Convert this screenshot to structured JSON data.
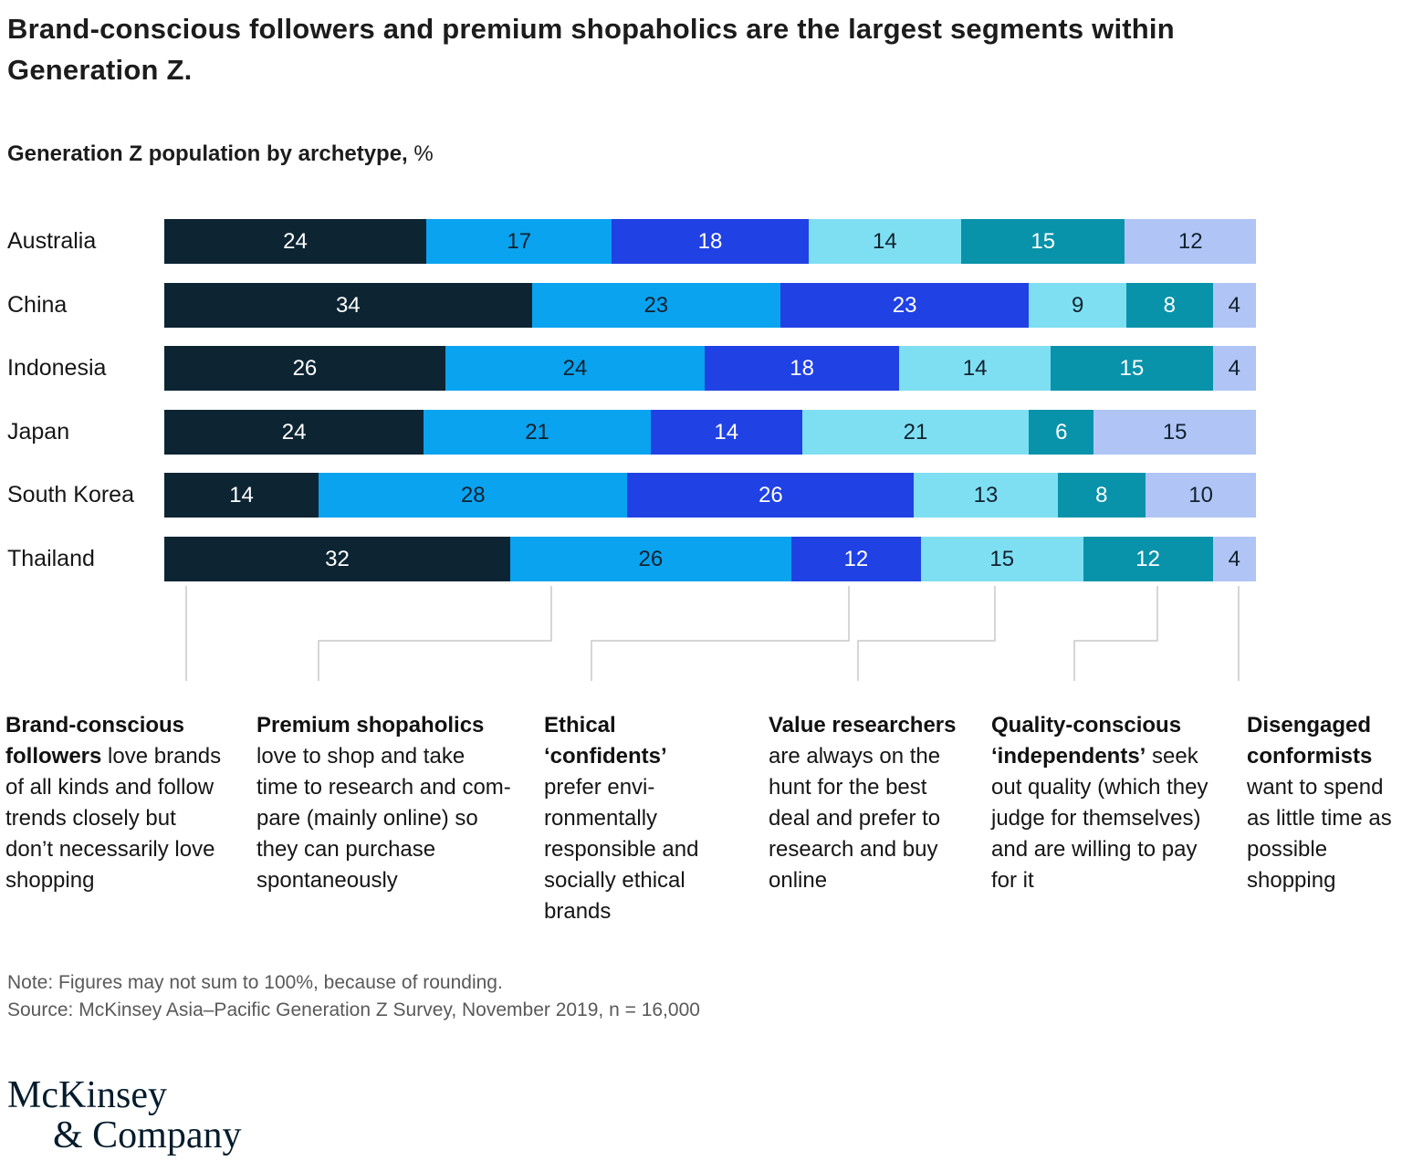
{
  "title": "Brand-conscious followers and premium shopaholics are the largest segments within Generation Z.",
  "subtitle": {
    "label": "Generation Z population by archetype,",
    "unit": "%"
  },
  "chart_data": {
    "type": "bar",
    "stacked": true,
    "orientation": "horizontal",
    "unit": "%",
    "xlim": [
      0,
      100
    ],
    "grid": false,
    "categories": [
      "Australia",
      "China",
      "Indonesia",
      "Japan",
      "South Korea",
      "Thailand"
    ],
    "series": [
      {
        "name": "Brand-conscious followers",
        "color": "#0d2433",
        "text_color": "#ffffff",
        "values": [
          24,
          34,
          26,
          24,
          14,
          32
        ]
      },
      {
        "name": "Premium shopaholics",
        "color": "#0aa3f0",
        "text_color": "#10222e",
        "values": [
          17,
          23,
          24,
          21,
          28,
          26
        ]
      },
      {
        "name": "Ethical ‘confidents’",
        "color": "#2041e4",
        "text_color": "#ffffff",
        "values": [
          18,
          23,
          18,
          14,
          26,
          12
        ]
      },
      {
        "name": "Value researchers",
        "color": "#7fdff2",
        "text_color": "#10222e",
        "values": [
          14,
          9,
          14,
          21,
          13,
          15
        ]
      },
      {
        "name": "Quality-conscious ‘independents’",
        "color": "#0993ab",
        "text_color": "#ffffff",
        "values": [
          15,
          8,
          15,
          6,
          8,
          12
        ]
      },
      {
        "name": "Disengaged conformists",
        "color": "#b0c5f6",
        "text_color": "#10222e",
        "values": [
          12,
          4,
          4,
          15,
          10,
          4
        ]
      }
    ]
  },
  "descriptions": [
    {
      "heading": "Brand-conscious followers",
      "body": "love brands of all kinds and follow trends closely but don’t necessarily love shopping"
    },
    {
      "heading": "Premium shopaholics",
      "body": "love to shop and take time to research and com-pare (mainly online) so they can purchase spontaneously"
    },
    {
      "heading": "Ethical ‘confidents’",
      "body": "prefer envi-ronmentally responsible and socially ethical brands"
    },
    {
      "heading": "Value researchers",
      "body": "are always on the hunt for the best deal and prefer to research and buy online"
    },
    {
      "heading": "Quality-conscious ‘independents’",
      "body": "seek out quality (which they judge for themselves) and are willing to pay for it"
    },
    {
      "heading": "Disengaged conformists",
      "body": "want to spend as little time as possible shopping"
    }
  ],
  "note": "Note: Figures may not sum to 100%, because of rounding.",
  "source": "Source: McKinsey Asia–Pacific Generation Z Survey, November 2019, n = 16,000",
  "logo": {
    "line1": "McKinsey",
    "line2": "& Company"
  }
}
